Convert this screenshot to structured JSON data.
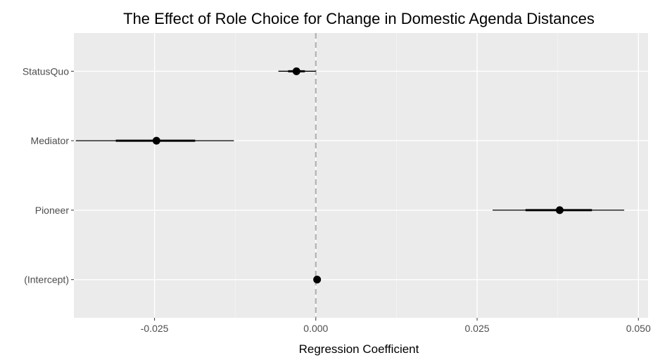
{
  "chart_data": {
    "type": "coefficient-plot",
    "title": "The Effect of Role Choice for Change in Domestic Agenda Distances",
    "xlabel": "Regression Coefficient",
    "ylabel": "",
    "xlim": [
      -0.0375,
      0.0515
    ],
    "x_ticks": [
      -0.025,
      0.0,
      0.025,
      0.05
    ],
    "x_tick_labels": [
      "-0.025",
      "0.000",
      "0.025",
      "0.050"
    ],
    "reference_line": 0.0,
    "grid": true,
    "categories": [
      "StatusQuo",
      "Mediator",
      "Pioneer",
      "(Intercept)"
    ],
    "estimates": [
      {
        "term": "StatusQuo",
        "estimate": -0.003,
        "ci_inner": [
          -0.0043,
          -0.0017
        ],
        "ci_outer": [
          -0.0058,
          0.0
        ]
      },
      {
        "term": "Mediator",
        "estimate": -0.0247,
        "ci_inner": [
          -0.031,
          -0.0187
        ],
        "ci_outer": [
          -0.0372,
          -0.0127
        ]
      },
      {
        "term": "Pioneer",
        "estimate": 0.0378,
        "ci_inner": [
          0.0325,
          0.0428
        ],
        "ci_outer": [
          0.0274,
          0.0478
        ]
      },
      {
        "term": "(Intercept)",
        "estimate": 0.0002,
        "ci_inner": [
          0.0001,
          0.0003
        ],
        "ci_outer": [
          0.0,
          0.0004
        ]
      }
    ],
    "colors": {
      "panel": "#ebebeb",
      "grid_major": "#ffffff",
      "grid_minor": "#f5f5f5",
      "point": "#000000",
      "reference_line": "#b3b3b3"
    }
  }
}
